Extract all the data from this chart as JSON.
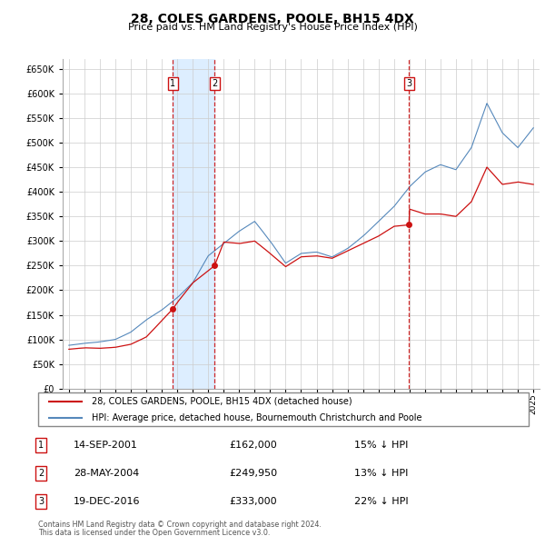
{
  "title": "28, COLES GARDENS, POOLE, BH15 4DX",
  "subtitle": "Price paid vs. HM Land Registry's House Price Index (HPI)",
  "footer_line1": "Contains HM Land Registry data © Crown copyright and database right 2024.",
  "footer_line2": "This data is licensed under the Open Government Licence v3.0.",
  "legend_line1": "28, COLES GARDENS, POOLE, BH15 4DX (detached house)",
  "legend_line2": "HPI: Average price, detached house, Bournemouth Christchurch and Poole",
  "transactions": [
    {
      "num": 1,
      "date": "14-SEP-2001",
      "date_x": 2001.71,
      "price": 162000
    },
    {
      "num": 2,
      "date": "28-MAY-2004",
      "date_x": 2004.41,
      "price": 249950
    },
    {
      "num": 3,
      "date": "19-DEC-2016",
      "date_x": 2016.97,
      "price": 333000
    }
  ],
  "table_rows": [
    {
      "num": 1,
      "date": "14-SEP-2001",
      "price": "£162,000",
      "pct": "15% ↓ HPI"
    },
    {
      "num": 2,
      "date": "28-MAY-2004",
      "price": "£249,950",
      "pct": "13% ↓ HPI"
    },
    {
      "num": 3,
      "date": "19-DEC-2016",
      "price": "£333,000",
      "pct": "22% ↓ HPI"
    }
  ],
  "hpi_color": "#5588bb",
  "price_color": "#cc1111",
  "dashed_color": "#cc1111",
  "shade_color": "#ddeeff",
  "ylim": [
    0,
    670000
  ],
  "yticks": [
    0,
    50000,
    100000,
    150000,
    200000,
    250000,
    300000,
    350000,
    400000,
    450000,
    500000,
    550000,
    600000,
    650000
  ],
  "xlim_start": 1994.6,
  "xlim_end": 2025.4,
  "xticks": [
    1995,
    1996,
    1997,
    1998,
    1999,
    2000,
    2001,
    2002,
    2003,
    2004,
    2005,
    2006,
    2007,
    2008,
    2009,
    2010,
    2011,
    2012,
    2013,
    2014,
    2015,
    2016,
    2017,
    2018,
    2019,
    2020,
    2021,
    2022,
    2023,
    2024,
    2025
  ],
  "background_color": "#ffffff",
  "grid_color": "#cccccc",
  "hpi_anchors_x": [
    1995,
    1996,
    1997,
    1998,
    1999,
    2000,
    2001,
    2002,
    2003,
    2004,
    2005,
    2006,
    2007,
    2008,
    2009,
    2010,
    2011,
    2012,
    2013,
    2014,
    2015,
    2016,
    2017,
    2018,
    2019,
    2020,
    2021,
    2022,
    2023,
    2024,
    2025
  ],
  "hpi_anchors_y": [
    88000,
    92000,
    95000,
    100000,
    115000,
    140000,
    160000,
    185000,
    215000,
    270000,
    295000,
    320000,
    340000,
    300000,
    255000,
    275000,
    278000,
    268000,
    285000,
    310000,
    340000,
    370000,
    410000,
    440000,
    455000,
    445000,
    490000,
    580000,
    520000,
    490000,
    530000
  ],
  "price_anchors_x": [
    1995,
    1996,
    1997,
    1998,
    1999,
    2000,
    2001.71,
    2002,
    2003,
    2004.41,
    2005,
    2006,
    2007,
    2008,
    2009,
    2010,
    2011,
    2012,
    2013,
    2014,
    2015,
    2016,
    2016.97,
    2017,
    2018,
    2019,
    2020,
    2021,
    2022,
    2023,
    2024,
    2025
  ],
  "price_anchors_y": [
    80000,
    83000,
    82000,
    84000,
    90000,
    105000,
    162000,
    175000,
    215000,
    249950,
    298000,
    295000,
    300000,
    275000,
    248000,
    268000,
    270000,
    265000,
    280000,
    295000,
    310000,
    330000,
    333000,
    365000,
    355000,
    355000,
    350000,
    380000,
    450000,
    415000,
    420000,
    415000
  ]
}
